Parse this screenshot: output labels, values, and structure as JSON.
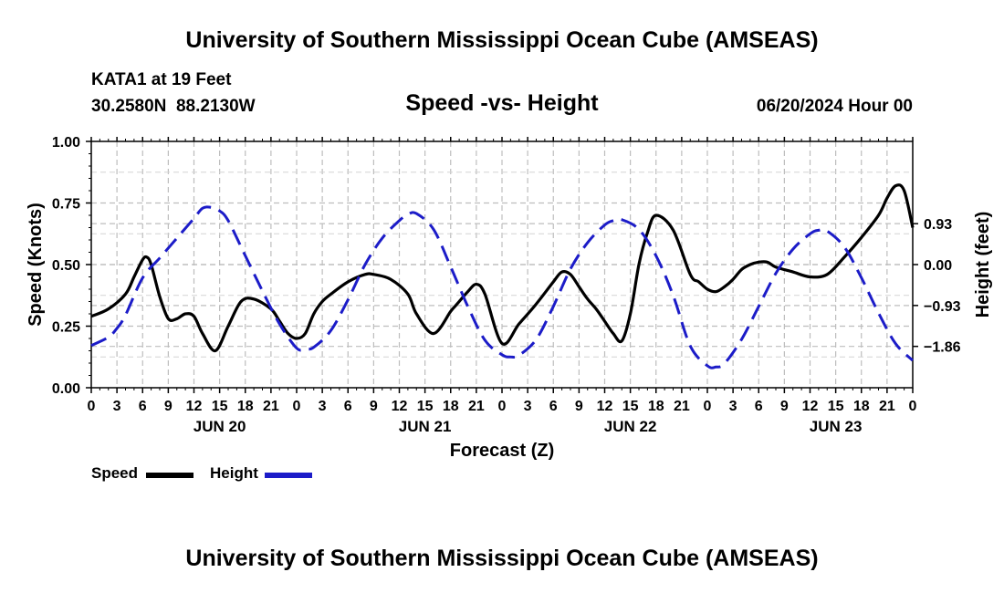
{
  "header": {
    "title": "University of Southern Mississippi Ocean Cube (AMSEAS)",
    "station": "KATA1 at 19 Feet",
    "coords": "30.2580N  88.2130W",
    "datetime": "06/20/2024 Hour 00"
  },
  "footer": {
    "title": "University of Southern Mississippi Ocean Cube (AMSEAS)"
  },
  "chart_data": {
    "type": "line",
    "title": "Speed -vs- Height",
    "xlabel": "Forecast (Z)",
    "ylabel": "Speed (Knots)",
    "ylabel_right": "Height (feet)",
    "x_tick_labels": [
      "0",
      "3",
      "6",
      "9",
      "12",
      "15",
      "18",
      "21",
      "0",
      "3",
      "6",
      "9",
      "12",
      "15",
      "18",
      "21",
      "0",
      "3",
      "6",
      "9",
      "12",
      "15",
      "18",
      "21",
      "0",
      "3",
      "6",
      "9",
      "12",
      "15",
      "18",
      "21",
      "0"
    ],
    "day_labels": [
      {
        "label": "JUN 20",
        "hour": 15
      },
      {
        "label": "JUN 21",
        "hour": 39
      },
      {
        "label": "JUN 22",
        "hour": 63
      },
      {
        "label": "JUN 23",
        "hour": 87
      }
    ],
    "xlim": [
      0,
      96
    ],
    "ylim": [
      0,
      1
    ],
    "y_ticks": [
      "0.00",
      "0.25",
      "0.50",
      "0.75",
      "1.00"
    ],
    "ylim_right": [
      -2.8,
      2.8
    ],
    "y_ticks_right": [
      {
        "value": -1.86,
        "label": "−1.86"
      },
      {
        "value": -0.93,
        "label": "−0.93"
      },
      {
        "value": 0.0,
        "label": "0.00"
      },
      {
        "value": 0.93,
        "label": "0.93"
      }
    ],
    "grid": true,
    "series": [
      {
        "name": "Speed",
        "color": "#000000",
        "dash": "solid",
        "axis": "left",
        "x": [
          0,
          2,
          4,
          5,
          6,
          6.5,
          7,
          8,
          9,
          10,
          11,
          12,
          13,
          14.5,
          16,
          17.5,
          19,
          21,
          22,
          23,
          24,
          25,
          26,
          27,
          28,
          30,
          32,
          33,
          35,
          37,
          38,
          40,
          42,
          42.5,
          43,
          44,
          45,
          46,
          48,
          50,
          52,
          54,
          55,
          56,
          57,
          58,
          59,
          60,
          61,
          62,
          63,
          64,
          65,
          66,
          68,
          70,
          71,
          72,
          73,
          74,
          75,
          76,
          77,
          78,
          79,
          80,
          82,
          84,
          86,
          88,
          90,
          92,
          93,
          94,
          95,
          96
        ],
        "values": [
          0.29,
          0.32,
          0.38,
          0.45,
          0.52,
          0.53,
          0.5,
          0.37,
          0.28,
          0.28,
          0.3,
          0.29,
          0.22,
          0.15,
          0.25,
          0.35,
          0.36,
          0.32,
          0.27,
          0.22,
          0.2,
          0.22,
          0.3,
          0.35,
          0.38,
          0.43,
          0.46,
          0.46,
          0.44,
          0.38,
          0.3,
          0.22,
          0.31,
          0.33,
          0.35,
          0.39,
          0.42,
          0.38,
          0.18,
          0.26,
          0.34,
          0.43,
          0.47,
          0.46,
          0.41,
          0.36,
          0.32,
          0.27,
          0.22,
          0.19,
          0.3,
          0.5,
          0.63,
          0.7,
          0.64,
          0.46,
          0.43,
          0.4,
          0.39,
          0.41,
          0.44,
          0.48,
          0.5,
          0.51,
          0.51,
          0.49,
          0.47,
          0.45,
          0.46,
          0.53,
          0.61,
          0.7,
          0.77,
          0.82,
          0.8,
          0.65
        ]
      },
      {
        "name": "Height",
        "color": "#1c1cc8",
        "dash": "dashed",
        "axis": "right",
        "x": [
          0,
          2,
          3,
          4,
          6,
          8,
          10,
          12,
          13,
          14,
          15,
          16,
          18,
          20,
          22,
          24,
          25,
          26,
          28,
          30,
          32,
          34,
          36,
          37,
          38,
          40,
          42,
          44,
          46,
          48,
          49,
          50,
          52,
          54,
          56,
          58,
          60,
          61,
          62,
          64,
          66,
          68,
          70,
          72,
          73,
          74,
          76,
          78,
          80,
          82,
          84,
          85,
          86,
          88,
          90,
          92,
          94,
          96
        ],
        "values": [
          -1.84,
          -1.65,
          -1.45,
          -1.15,
          -0.3,
          0.15,
          0.6,
          1.05,
          1.28,
          1.3,
          1.22,
          1.0,
          0.2,
          -0.6,
          -1.35,
          -1.9,
          -1.92,
          -1.88,
          -1.5,
          -0.8,
          0.0,
          0.6,
          1.0,
          1.14,
          1.16,
          0.8,
          -0.05,
          -0.95,
          -1.72,
          -2.05,
          -2.1,
          -2.06,
          -1.7,
          -0.95,
          -0.1,
          0.5,
          0.9,
          1.0,
          1.02,
          0.8,
          0.2,
          -0.7,
          -1.85,
          -2.3,
          -2.33,
          -2.25,
          -1.7,
          -0.95,
          -0.2,
          0.35,
          0.7,
          0.78,
          0.76,
          0.4,
          -0.3,
          -1.1,
          -1.8,
          -2.18
        ]
      }
    ],
    "legend": [
      {
        "label": "Speed",
        "color": "#000000"
      },
      {
        "label": "Height",
        "color": "#1c1cc8"
      }
    ]
  }
}
